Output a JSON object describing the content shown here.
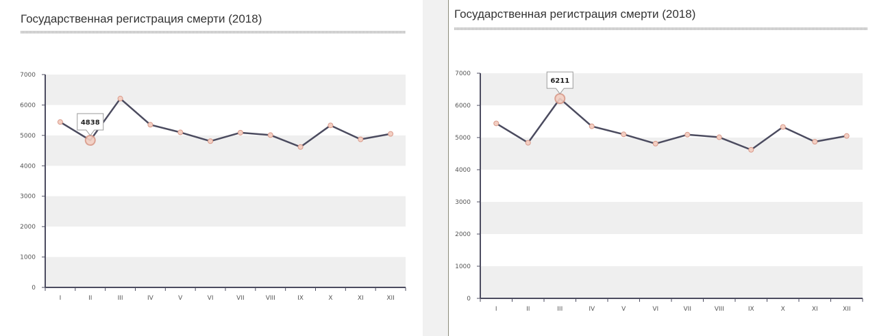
{
  "colors": {
    "band": "#efefef",
    "line": "#4b4b5f",
    "marker_fill": "#f3cfc3",
    "marker_stroke": "#d99a8a",
    "axis": "#4b4b5f"
  },
  "panels": [
    {
      "title": "Государственная регистрация смерти (2018)",
      "tooltip": "4838",
      "highlight_index": 1
    },
    {
      "title": "Государственная регистрация смерти (2018)",
      "tooltip": "6211",
      "highlight_index": 2
    }
  ],
  "chart_data": [
    {
      "type": "line",
      "title": "Государственная регистрация смерти (2018)",
      "categories": [
        "I",
        "II",
        "III",
        "IV",
        "V",
        "VI",
        "VII",
        "VIII",
        "IX",
        "X",
        "XI",
        "XII"
      ],
      "values": [
        5440,
        4838,
        6211,
        5350,
        5100,
        4810,
        5090,
        5010,
        4620,
        5330,
        4870,
        5050
      ],
      "ylim": [
        0,
        7000
      ],
      "yticks": [
        "0",
        "1000",
        "2000",
        "3000",
        "4000",
        "5000",
        "6000",
        "7000"
      ],
      "grid": "alternating horizontal bands",
      "legend": "none"
    },
    {
      "type": "line",
      "title": "Государственная регистрация смерти (2018)",
      "categories": [
        "I",
        "II",
        "III",
        "IV",
        "V",
        "VI",
        "VII",
        "VIII",
        "IX",
        "X",
        "XI",
        "XII"
      ],
      "values": [
        5440,
        4838,
        6211,
        5350,
        5100,
        4810,
        5090,
        5010,
        4620,
        5330,
        4870,
        5050
      ],
      "ylim": [
        0,
        7000
      ],
      "yticks": [
        "0",
        "1000",
        "2000",
        "3000",
        "4000",
        "5000",
        "6000",
        "7000"
      ],
      "grid": "alternating horizontal bands",
      "legend": "none"
    }
  ]
}
